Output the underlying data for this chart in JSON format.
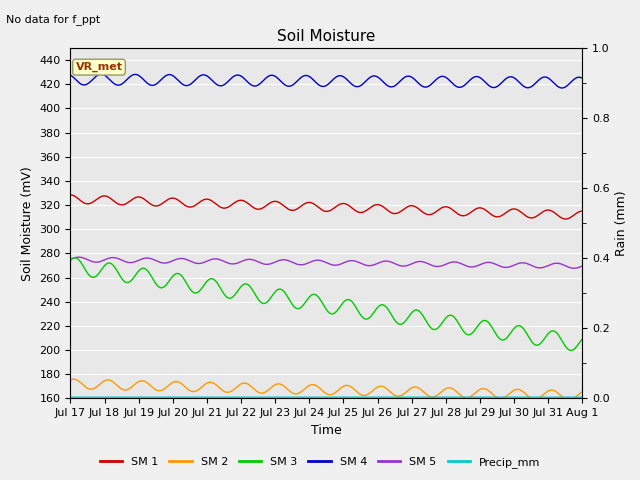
{
  "title": "Soil Moisture",
  "topleft_text": "No data for f_ppt",
  "xlabel": "Time",
  "ylabel_left": "Soil Moisture (mV)",
  "ylabel_right": "Rain (mm)",
  "ylim_left": [
    160,
    450
  ],
  "ylim_right": [
    0.0,
    1.0
  ],
  "yticks_left": [
    160,
    180,
    200,
    220,
    240,
    260,
    280,
    300,
    320,
    340,
    360,
    380,
    400,
    420,
    440
  ],
  "yticks_right": [
    0.0,
    0.2,
    0.4,
    0.6,
    0.8,
    1.0
  ],
  "xtick_labels": [
    "Jul 17",
    "Jul 18",
    "Jul 19",
    "Jul 20",
    "Jul 21",
    "Jul 22",
    "Jul 23",
    "Jul 24",
    "Jul 25",
    "Jul 26",
    "Jul 27",
    "Jul 28",
    "Jul 29",
    "Jul 30",
    "Jul 31",
    "Aug 1"
  ],
  "n_days": 15,
  "background_color": "#e8e8e8",
  "grid_color": "#ffffff",
  "fig_bg": "#f0f0f0",
  "series": {
    "SM1": {
      "color": "#cc0000",
      "mean": 325,
      "amplitude": 3.5,
      "trend": -0.0025,
      "freq": 1.0,
      "phase": 0.5
    },
    "SM2": {
      "color": "#ff9900",
      "mean": 172,
      "amplitude": 4.0,
      "trend": -0.0018,
      "freq": 1.0,
      "phase": 0.3
    },
    "SM3": {
      "color": "#00cc00",
      "mean": 270,
      "amplitude": 7.0,
      "trend": -0.012,
      "freq": 1.0,
      "phase": 0.2
    },
    "SM4": {
      "color": "#0000cc",
      "mean": 424,
      "amplitude": 4.5,
      "trend": -0.0005,
      "freq": 1.0,
      "phase": 0.7
    },
    "SM5": {
      "color": "#9933cc",
      "mean": 275,
      "amplitude": 2.0,
      "trend": -0.001,
      "freq": 1.0,
      "phase": 0.0
    },
    "Precip": {
      "color": "#00cccc",
      "mean": 161,
      "amplitude": 0,
      "trend": 0.0,
      "freq": 1.0,
      "phase": 0.0
    }
  },
  "legend_labels": [
    "SM 1",
    "SM 2",
    "SM 3",
    "SM 4",
    "SM 5",
    "Precip_mm"
  ],
  "legend_colors": [
    "#cc0000",
    "#ff9900",
    "#00cc00",
    "#0000cc",
    "#9933cc",
    "#00cccc"
  ],
  "vr_met_label": "VR_met",
  "vr_met_bg": "#ffffcc",
  "vr_met_text_color": "#993300",
  "vr_met_border": "#999966"
}
